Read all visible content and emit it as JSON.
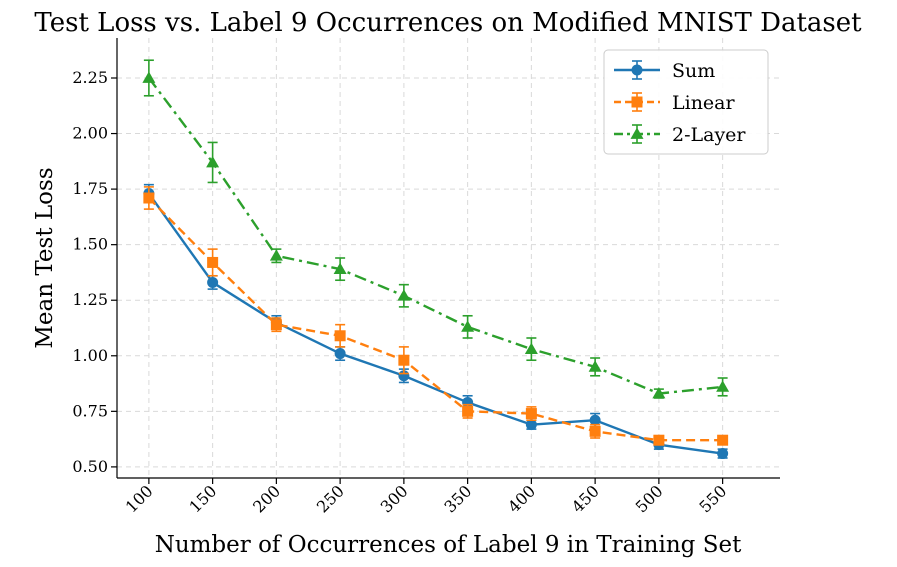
{
  "chart_data": {
    "type": "line",
    "title": "Test Loss vs. Label 9 Occurrences on Modified MNIST Dataset",
    "xlabel": "Number of Occurrences of Label 9 in Training Set",
    "ylabel": "Mean Test Loss",
    "x": [
      100,
      150,
      200,
      250,
      300,
      350,
      400,
      450,
      500,
      550
    ],
    "x_tick_labels": [
      "100",
      "150",
      "200",
      "250",
      "300",
      "350",
      "400",
      "450",
      "500",
      "550"
    ],
    "y_ticks": [
      0.5,
      0.75,
      1.0,
      1.25,
      1.5,
      1.75,
      2.0,
      2.25
    ],
    "y_tick_labels": [
      "0.50",
      "0.75",
      "1.00",
      "1.25",
      "1.50",
      "1.75",
      "2.00",
      "2.25"
    ],
    "ylim": [
      0.45,
      2.43
    ],
    "xlim": [
      75,
      595
    ],
    "grid": true,
    "legend_position": "top-right",
    "series": [
      {
        "name": "Sum",
        "color": "#1f77b4",
        "marker": "circle",
        "linestyle": "solid",
        "values": [
          1.73,
          1.33,
          1.15,
          1.01,
          0.91,
          0.79,
          0.69,
          0.71,
          0.6,
          0.56
        ],
        "errors": [
          0.04,
          0.03,
          0.03,
          0.03,
          0.03,
          0.03,
          0.02,
          0.03,
          0.02,
          0.02
        ]
      },
      {
        "name": "Linear",
        "color": "#ff7f0e",
        "marker": "square",
        "linestyle": "dashed",
        "values": [
          1.71,
          1.42,
          1.14,
          1.09,
          0.98,
          0.75,
          0.74,
          0.66,
          0.62,
          0.62
        ],
        "errors": [
          0.05,
          0.06,
          0.03,
          0.05,
          0.06,
          0.03,
          0.03,
          0.03,
          0.02,
          0.02
        ]
      },
      {
        "name": "2-Layer",
        "color": "#2ca02c",
        "marker": "triangle",
        "linestyle": "dashdot",
        "values": [
          2.25,
          1.87,
          1.45,
          1.39,
          1.27,
          1.13,
          1.03,
          0.95,
          0.83,
          0.86
        ],
        "errors": [
          0.08,
          0.09,
          0.03,
          0.05,
          0.05,
          0.05,
          0.05,
          0.04,
          0.02,
          0.04
        ]
      }
    ]
  }
}
